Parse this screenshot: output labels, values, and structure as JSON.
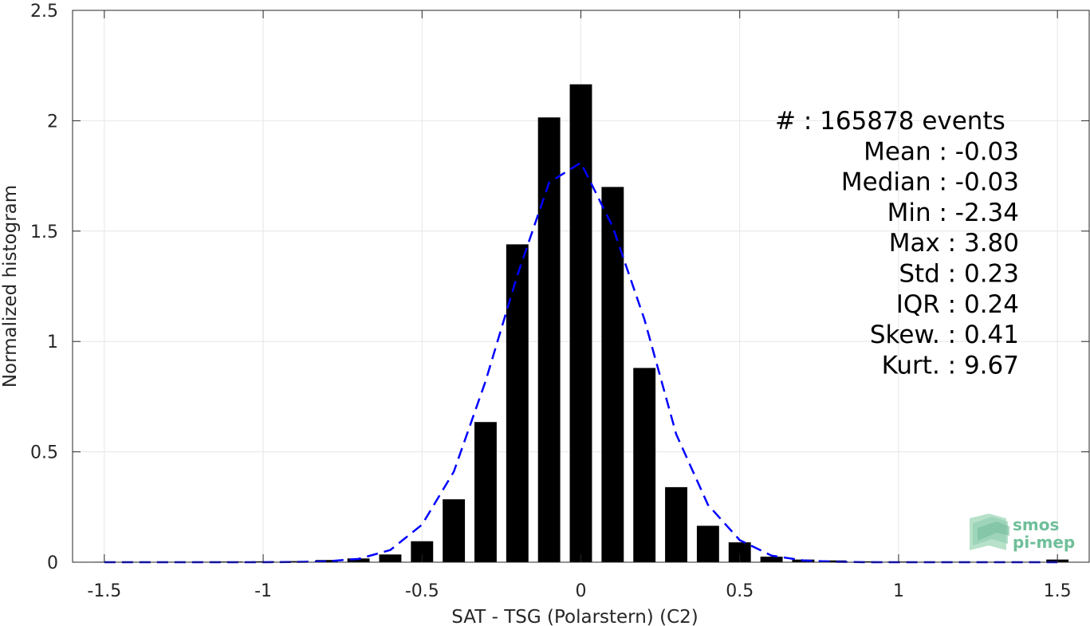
{
  "chart_data": {
    "type": "bar",
    "xlabel": "SAT - TSG (Polarstern) (C2)",
    "ylabel": "Normalized histogram",
    "xlim": [
      -1.6,
      1.6
    ],
    "ylim": [
      0,
      2.5
    ],
    "grid": true,
    "x_ticks": [
      "-1.5",
      "-1",
      "-0.5",
      "0",
      "0.5",
      "1",
      "1.5"
    ],
    "y_ticks": [
      "0",
      "0.5",
      "1",
      "1.5",
      "2",
      "2.5"
    ],
    "bin_width": 0.1,
    "bars": {
      "x": [
        -1.5,
        -1.4,
        -1.3,
        -1.2,
        -1.1,
        -1.0,
        -0.9,
        -0.8,
        -0.7,
        -0.6,
        -0.5,
        -0.4,
        -0.3,
        -0.2,
        -0.1,
        0.0,
        0.1,
        0.2,
        0.3,
        0.4,
        0.5,
        0.6,
        0.7,
        0.8,
        0.9,
        1.0,
        1.1,
        1.2,
        1.3,
        1.4,
        1.5
      ],
      "values": [
        0.002,
        0.002,
        0.002,
        0.002,
        0.003,
        0.004,
        0.005,
        0.01,
        0.017,
        0.035,
        0.095,
        0.285,
        0.635,
        1.44,
        2.015,
        2.165,
        1.7,
        0.88,
        0.34,
        0.165,
        0.09,
        0.025,
        0.012,
        0.008,
        0.004,
        0.003,
        0.002,
        0.002,
        0.002,
        0.002,
        0.012
      ],
      "color": "#000000"
    },
    "fit_curve": {
      "style": "dashed",
      "color": "#0000ff",
      "x": [
        -1.5,
        -1.4,
        -1.3,
        -1.2,
        -1.1,
        -1.0,
        -0.9,
        -0.8,
        -0.7,
        -0.6,
        -0.5,
        -0.4,
        -0.3,
        -0.2,
        -0.1,
        0.0,
        0.1,
        0.2,
        0.3,
        0.4,
        0.5,
        0.6,
        0.7,
        0.8,
        0.9,
        1.0,
        1.1,
        1.2,
        1.3,
        1.4,
        1.5
      ],
      "y": [
        0.0,
        0.0,
        0.0,
        0.0,
        0.0,
        0.0,
        0.001,
        0.004,
        0.015,
        0.055,
        0.17,
        0.41,
        0.82,
        1.3,
        1.72,
        1.81,
        1.52,
        1.1,
        0.58,
        0.26,
        0.1,
        0.03,
        0.008,
        0.002,
        0.0,
        0.0,
        0.0,
        0.0,
        0.0,
        0.0,
        0.0
      ]
    },
    "stats_lines": [
      "#  : 165878 events",
      "Mean : -0.03",
      "Median : -0.03",
      "Min : -2.34",
      "Max : 3.80",
      "Std : 0.23",
      "IQR : 0.24",
      "Skew. : 0.41",
      "Kurt. : 9.67"
    ]
  },
  "logo": {
    "line1": "smos",
    "line2": "pi-mep"
  }
}
